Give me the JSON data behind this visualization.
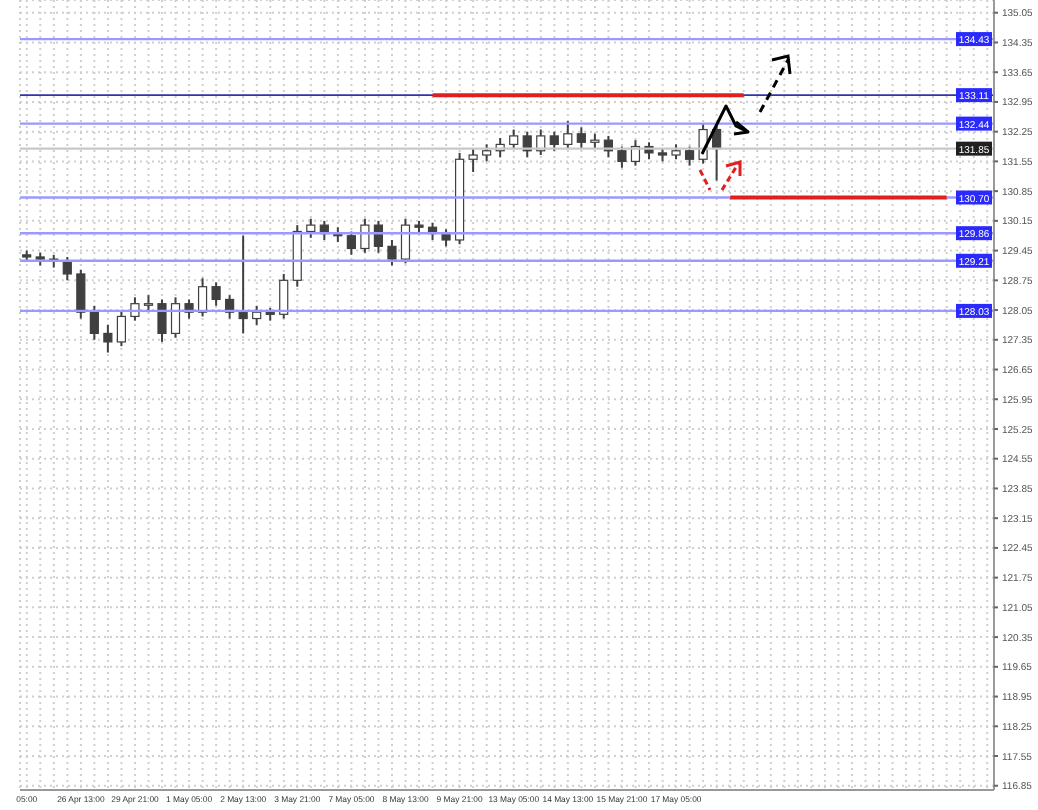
{
  "chart_data": {
    "type": "candlestick",
    "color": "#404040",
    "categories": [
      "05:00",
      null,
      null,
      null,
      "26 Apr 13:00",
      null,
      null,
      null,
      "29 Apr 21:00",
      null,
      null,
      null,
      "1 May 05:00",
      null,
      null,
      null,
      "2 May 13:00",
      null,
      null,
      null,
      "3 May 21:00",
      null,
      null,
      null,
      "7 May 05:00",
      null,
      null,
      null,
      "8 May 13:00",
      null,
      null,
      null,
      "9 May 21:00",
      null,
      null,
      null,
      "13 May 05:00",
      null,
      null,
      null,
      "14 May 13:00",
      null,
      null,
      null,
      "15 May 21:00",
      null,
      null,
      null,
      "17 May 05:00",
      null,
      null,
      null,
      null,
      null,
      null,
      null,
      null,
      null,
      null,
      null,
      null,
      null,
      null,
      null,
      null,
      null,
      null,
      null,
      null,
      null,
      null,
      null
    ],
    "ohlc": [
      [
        129.35,
        129.45,
        129.2,
        129.3
      ],
      [
        129.3,
        129.4,
        129.1,
        129.25
      ],
      [
        129.25,
        129.35,
        129.05,
        129.2
      ],
      [
        129.2,
        129.3,
        128.75,
        128.9
      ],
      [
        128.9,
        129.0,
        127.85,
        128.0
      ],
      [
        128.0,
        128.15,
        127.35,
        127.5
      ],
      [
        127.5,
        127.7,
        127.05,
        127.3
      ],
      [
        127.3,
        128.05,
        127.2,
        127.9
      ],
      [
        127.9,
        128.35,
        127.8,
        128.2
      ],
      [
        128.2,
        128.4,
        128.0,
        128.2
      ],
      [
        128.2,
        128.3,
        127.3,
        127.5
      ],
      [
        127.5,
        128.35,
        127.4,
        128.2
      ],
      [
        128.2,
        128.3,
        127.85,
        128.0
      ],
      [
        128.0,
        128.8,
        127.9,
        128.6
      ],
      [
        128.6,
        128.7,
        128.15,
        128.3
      ],
      [
        128.3,
        128.4,
        127.85,
        128.0
      ],
      [
        128.0,
        129.8,
        127.5,
        127.85
      ],
      [
        127.85,
        128.15,
        127.7,
        128.0
      ],
      [
        128.0,
        128.1,
        127.8,
        127.95
      ],
      [
        127.95,
        128.9,
        127.85,
        128.75
      ],
      [
        128.75,
        130.05,
        128.6,
        129.9
      ],
      [
        129.9,
        130.2,
        129.75,
        130.05
      ],
      [
        130.05,
        130.15,
        129.7,
        129.85
      ],
      [
        129.85,
        130.0,
        129.65,
        129.8
      ],
      [
        129.8,
        129.9,
        129.35,
        129.5
      ],
      [
        129.5,
        130.2,
        129.4,
        130.05
      ],
      [
        130.05,
        130.15,
        129.4,
        129.55
      ],
      [
        129.55,
        129.7,
        129.1,
        129.25
      ],
      [
        129.25,
        130.2,
        129.15,
        130.05
      ],
      [
        130.05,
        130.15,
        129.85,
        130.0
      ],
      [
        130.0,
        130.1,
        129.7,
        129.85
      ],
      [
        129.85,
        129.95,
        129.55,
        129.7
      ],
      [
        129.7,
        131.75,
        129.6,
        131.6
      ],
      [
        131.6,
        131.85,
        131.3,
        131.7
      ],
      [
        131.7,
        131.95,
        131.55,
        131.8
      ],
      [
        131.8,
        132.1,
        131.65,
        131.95
      ],
      [
        131.95,
        132.3,
        131.85,
        132.15
      ],
      [
        132.15,
        132.25,
        131.65,
        131.8
      ],
      [
        131.8,
        132.3,
        131.7,
        132.15
      ],
      [
        132.15,
        132.25,
        131.8,
        131.95
      ],
      [
        131.95,
        132.5,
        131.85,
        132.2
      ],
      [
        132.2,
        132.35,
        131.85,
        132.0
      ],
      [
        132.0,
        132.2,
        131.85,
        132.05
      ],
      [
        132.05,
        132.15,
        131.65,
        131.8
      ],
      [
        131.8,
        131.9,
        131.4,
        131.55
      ],
      [
        131.55,
        132.05,
        131.45,
        131.9
      ],
      [
        131.9,
        132.0,
        131.6,
        131.75
      ],
      [
        131.75,
        131.85,
        131.55,
        131.7
      ],
      [
        131.7,
        131.95,
        131.6,
        131.8
      ],
      [
        131.8,
        131.9,
        131.45,
        131.6
      ],
      [
        131.6,
        132.45,
        131.5,
        132.3
      ],
      [
        132.3,
        132.4,
        131.1,
        131.85
      ],
      null,
      null,
      null,
      null,
      null,
      null,
      null,
      null,
      null,
      null,
      null,
      null,
      null,
      null,
      null,
      null,
      null,
      null,
      null,
      null
    ],
    "series": [
      {
        "type": "line",
        "color": "#e02020",
        "values": [
          null,
          null,
          null,
          null,
          null,
          null,
          null,
          null,
          null,
          null,
          null,
          null,
          null,
          null,
          null,
          null,
          null,
          null,
          null,
          null,
          null,
          null,
          null,
          null,
          null,
          null,
          null,
          null,
          null,
          null,
          133.11,
          133.11,
          133.11,
          133.11,
          133.11,
          133.11,
          133.11,
          133.11,
          133.11,
          133.11,
          133.11,
          133.11,
          133.11,
          133.11,
          133.11,
          133.11,
          133.11,
          133.11,
          133.11,
          133.11,
          133.11,
          133.11,
          133.11,
          133.11,
          null,
          null,
          null,
          null,
          null,
          null,
          null,
          null,
          null,
          null,
          null,
          null,
          null,
          null,
          null,
          null,
          null,
          null
        ]
      },
      {
        "type": "line",
        "color": "#e02020",
        "values": [
          null,
          null,
          null,
          null,
          null,
          null,
          null,
          null,
          null,
          null,
          null,
          null,
          null,
          null,
          null,
          null,
          null,
          null,
          null,
          null,
          null,
          null,
          null,
          null,
          null,
          null,
          null,
          null,
          null,
          null,
          null,
          null,
          null,
          null,
          null,
          null,
          null,
          null,
          null,
          null,
          null,
          null,
          null,
          null,
          null,
          null,
          null,
          null,
          null,
          null,
          null,
          null,
          130.7,
          130.7,
          130.7,
          130.7,
          130.7,
          130.7,
          130.7,
          130.7,
          130.7,
          130.7,
          130.7,
          130.7,
          130.7,
          130.7,
          130.7,
          130.7,
          130.7,
          null,
          null,
          null
        ]
      }
    ],
    "ylim": [
      116.75,
      135.35
    ],
    "yticks": [
      116.85,
      117.55,
      118.25,
      118.95,
      119.65,
      120.35,
      121.05,
      121.75,
      122.45,
      123.15,
      123.85,
      124.55,
      125.25,
      125.95,
      126.65,
      127.35,
      128.05,
      128.75,
      129.45,
      130.15,
      130.85,
      131.55,
      132.25,
      132.95,
      133.65,
      134.35,
      135.05
    ],
    "ref_lines": [
      {
        "axis": "y",
        "value": 134.43,
        "label": "134.43",
        "color": "#9999ff"
      },
      {
        "axis": "y",
        "value": 133.11,
        "label": "133.11",
        "color": "#3333aa"
      },
      {
        "axis": "y",
        "value": 132.44,
        "label": "132.44",
        "color": "#9999ff"
      },
      {
        "axis": "y",
        "value": 131.85,
        "label": "131.85",
        "color": "#c8c8c8"
      },
      {
        "axis": "y",
        "value": 130.7,
        "label": "130.70",
        "color": "#9999ff"
      },
      {
        "axis": "y",
        "value": 129.86,
        "label": "129.86",
        "color": "#9999ff"
      },
      {
        "axis": "y",
        "value": 129.21,
        "label": "129.21",
        "color": "#9999ff"
      },
      {
        "axis": "y",
        "value": 128.03,
        "label": "128.03",
        "color": "#9999ff"
      }
    ],
    "grid": true
  }
}
